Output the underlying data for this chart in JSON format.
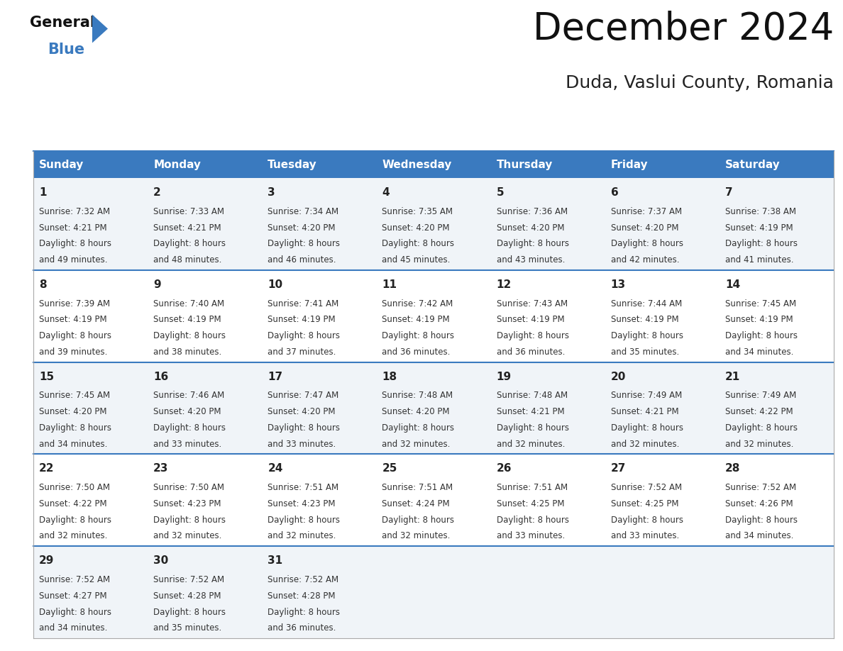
{
  "title": "December 2024",
  "subtitle": "Duda, Vaslui County, Romania",
  "header_bg_color": "#3a7abf",
  "header_text_color": "#ffffff",
  "separator_color": "#3a7abf",
  "row_bg_even": "#f0f4f8",
  "row_bg_odd": "#ffffff",
  "text_color": "#333333",
  "day_num_color": "#222222",
  "days_of_week": [
    "Sunday",
    "Monday",
    "Tuesday",
    "Wednesday",
    "Thursday",
    "Friday",
    "Saturday"
  ],
  "calendar_data": [
    [
      {
        "day": 1,
        "sunrise": "7:32 AM",
        "sunset": "4:21 PM",
        "daylight": "8 hours and 49 minutes"
      },
      {
        "day": 2,
        "sunrise": "7:33 AM",
        "sunset": "4:21 PM",
        "daylight": "8 hours and 48 minutes"
      },
      {
        "day": 3,
        "sunrise": "7:34 AM",
        "sunset": "4:20 PM",
        "daylight": "8 hours and 46 minutes"
      },
      {
        "day": 4,
        "sunrise": "7:35 AM",
        "sunset": "4:20 PM",
        "daylight": "8 hours and 45 minutes"
      },
      {
        "day": 5,
        "sunrise": "7:36 AM",
        "sunset": "4:20 PM",
        "daylight": "8 hours and 43 minutes"
      },
      {
        "day": 6,
        "sunrise": "7:37 AM",
        "sunset": "4:20 PM",
        "daylight": "8 hours and 42 minutes"
      },
      {
        "day": 7,
        "sunrise": "7:38 AM",
        "sunset": "4:19 PM",
        "daylight": "8 hours and 41 minutes"
      }
    ],
    [
      {
        "day": 8,
        "sunrise": "7:39 AM",
        "sunset": "4:19 PM",
        "daylight": "8 hours and 39 minutes"
      },
      {
        "day": 9,
        "sunrise": "7:40 AM",
        "sunset": "4:19 PM",
        "daylight": "8 hours and 38 minutes"
      },
      {
        "day": 10,
        "sunrise": "7:41 AM",
        "sunset": "4:19 PM",
        "daylight": "8 hours and 37 minutes"
      },
      {
        "day": 11,
        "sunrise": "7:42 AM",
        "sunset": "4:19 PM",
        "daylight": "8 hours and 36 minutes"
      },
      {
        "day": 12,
        "sunrise": "7:43 AM",
        "sunset": "4:19 PM",
        "daylight": "8 hours and 36 minutes"
      },
      {
        "day": 13,
        "sunrise": "7:44 AM",
        "sunset": "4:19 PM",
        "daylight": "8 hours and 35 minutes"
      },
      {
        "day": 14,
        "sunrise": "7:45 AM",
        "sunset": "4:19 PM",
        "daylight": "8 hours and 34 minutes"
      }
    ],
    [
      {
        "day": 15,
        "sunrise": "7:45 AM",
        "sunset": "4:20 PM",
        "daylight": "8 hours and 34 minutes"
      },
      {
        "day": 16,
        "sunrise": "7:46 AM",
        "sunset": "4:20 PM",
        "daylight": "8 hours and 33 minutes"
      },
      {
        "day": 17,
        "sunrise": "7:47 AM",
        "sunset": "4:20 PM",
        "daylight": "8 hours and 33 minutes"
      },
      {
        "day": 18,
        "sunrise": "7:48 AM",
        "sunset": "4:20 PM",
        "daylight": "8 hours and 32 minutes"
      },
      {
        "day": 19,
        "sunrise": "7:48 AM",
        "sunset": "4:21 PM",
        "daylight": "8 hours and 32 minutes"
      },
      {
        "day": 20,
        "sunrise": "7:49 AM",
        "sunset": "4:21 PM",
        "daylight": "8 hours and 32 minutes"
      },
      {
        "day": 21,
        "sunrise": "7:49 AM",
        "sunset": "4:22 PM",
        "daylight": "8 hours and 32 minutes"
      }
    ],
    [
      {
        "day": 22,
        "sunrise": "7:50 AM",
        "sunset": "4:22 PM",
        "daylight": "8 hours and 32 minutes"
      },
      {
        "day": 23,
        "sunrise": "7:50 AM",
        "sunset": "4:23 PM",
        "daylight": "8 hours and 32 minutes"
      },
      {
        "day": 24,
        "sunrise": "7:51 AM",
        "sunset": "4:23 PM",
        "daylight": "8 hours and 32 minutes"
      },
      {
        "day": 25,
        "sunrise": "7:51 AM",
        "sunset": "4:24 PM",
        "daylight": "8 hours and 32 minutes"
      },
      {
        "day": 26,
        "sunrise": "7:51 AM",
        "sunset": "4:25 PM",
        "daylight": "8 hours and 33 minutes"
      },
      {
        "day": 27,
        "sunrise": "7:52 AM",
        "sunset": "4:25 PM",
        "daylight": "8 hours and 33 minutes"
      },
      {
        "day": 28,
        "sunrise": "7:52 AM",
        "sunset": "4:26 PM",
        "daylight": "8 hours and 34 minutes"
      }
    ],
    [
      {
        "day": 29,
        "sunrise": "7:52 AM",
        "sunset": "4:27 PM",
        "daylight": "8 hours and 34 minutes"
      },
      {
        "day": 30,
        "sunrise": "7:52 AM",
        "sunset": "4:28 PM",
        "daylight": "8 hours and 35 minutes"
      },
      {
        "day": 31,
        "sunrise": "7:52 AM",
        "sunset": "4:28 PM",
        "daylight": "8 hours and 36 minutes"
      },
      null,
      null,
      null,
      null
    ]
  ],
  "logo_text_general": "General",
  "logo_text_blue": "Blue",
  "logo_triangle_color": "#3a7abf",
  "title_fontsize": 38,
  "subtitle_fontsize": 18,
  "header_fontsize": 11,
  "day_num_fontsize": 11,
  "cell_text_fontsize": 8.5
}
